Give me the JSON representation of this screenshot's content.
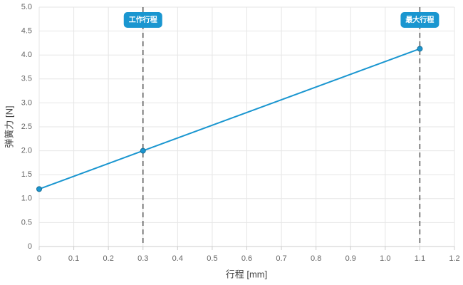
{
  "chart_data": {
    "type": "line",
    "x": [
      0,
      0.3,
      1.1
    ],
    "values": [
      1.2,
      2.0,
      4.13
    ],
    "color": "#1a96d0",
    "xlabel": "行程 [mm]",
    "ylabel": "弹簧力 [N]",
    "xlim": [
      0,
      1.2
    ],
    "xticks": [
      0,
      0.1,
      0.2,
      0.3,
      0.4,
      0.5,
      0.6,
      0.7,
      0.8,
      0.9,
      {
        "value": 1,
        "label": "1.0"
      },
      1.1,
      1.2
    ],
    "ylim": [
      0,
      5
    ],
    "yticks": [
      0,
      0.5,
      {
        "value": 1,
        "label": "1.0"
      },
      1.5,
      {
        "value": 2,
        "label": "2.0"
      },
      2.5,
      {
        "value": 3,
        "label": "3.0"
      },
      3.5,
      {
        "value": 4,
        "label": "4.0"
      },
      4.5,
      {
        "value": 5,
        "label": "5.0"
      }
    ],
    "grid": true,
    "annotations": [
      {
        "x": 0.3,
        "label": "工作行程"
      },
      {
        "x": 1.1,
        "label": "最大行程"
      }
    ]
  }
}
